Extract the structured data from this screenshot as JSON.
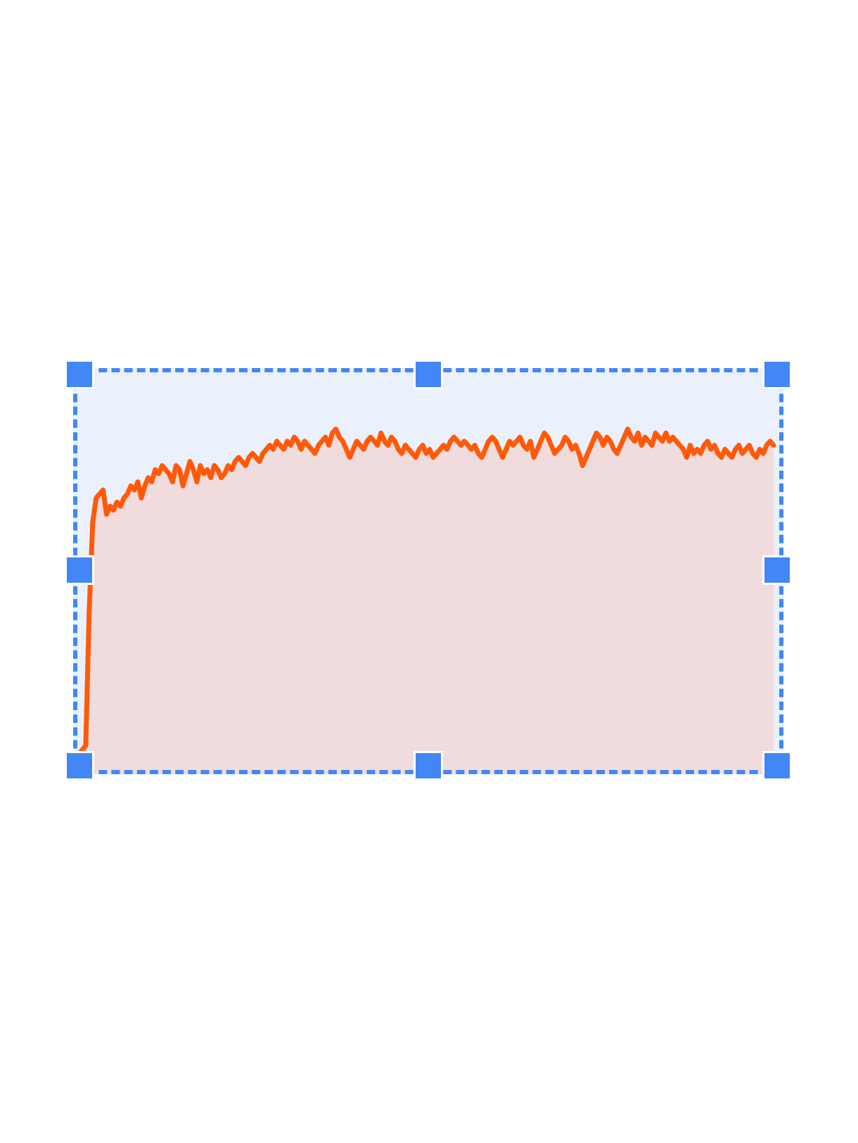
{
  "canvas": {
    "background": "#ffffff"
  },
  "selection": {
    "color": "#4287f5",
    "handles": [
      "top-left",
      "top-center",
      "top-right",
      "middle-left",
      "middle-right",
      "bottom-left",
      "bottom-center",
      "bottom-right"
    ]
  },
  "chart_data": {
    "type": "area",
    "title": "",
    "xlabel": "",
    "ylabel": "",
    "grid": false,
    "legend": "none",
    "colors": {
      "line": "#ff5a0a",
      "area": "#f0dcdc",
      "plot_background": "#eaf1fc"
    },
    "ylim": [
      0,
      100
    ],
    "x": [
      0,
      1,
      2,
      3,
      4,
      5,
      6,
      7,
      8,
      9,
      10,
      11,
      12,
      13,
      14,
      15,
      16,
      17,
      18,
      19,
      20,
      21,
      22,
      23,
      24,
      25,
      26,
      27,
      28,
      29,
      30,
      31,
      32,
      33,
      34,
      35,
      36,
      37,
      38,
      39,
      40,
      41,
      42,
      43,
      44,
      45,
      46,
      47,
      48,
      49,
      50,
      51,
      52,
      53,
      54,
      55,
      56,
      57,
      58,
      59,
      60,
      61,
      62,
      63,
      64,
      65,
      66,
      67,
      68,
      69,
      70,
      71,
      72,
      73,
      74,
      75,
      76,
      77,
      78,
      79,
      80,
      81,
      82,
      83,
      84,
      85,
      86,
      87,
      88,
      89,
      90,
      91,
      92,
      93,
      94,
      95,
      96,
      97,
      98,
      99,
      100,
      101,
      102,
      103,
      104,
      105,
      106,
      107,
      108,
      109,
      110,
      111,
      112,
      113,
      114,
      115,
      116,
      117,
      118,
      119,
      120,
      121,
      122,
      123,
      124,
      125,
      126,
      127,
      128,
      129,
      130,
      131,
      132,
      133,
      134,
      135,
      136,
      137,
      138,
      139,
      140,
      141,
      142,
      143,
      144,
      145,
      146,
      147,
      148,
      149,
      150,
      151,
      152,
      153,
      154,
      155,
      156,
      157,
      158,
      159,
      160,
      161,
      162,
      163,
      164,
      165,
      166,
      167,
      168,
      169,
      170,
      171,
      172,
      173,
      174,
      175,
      176,
      177,
      178,
      179,
      180,
      181,
      182,
      183,
      184,
      185,
      186,
      187,
      188,
      189,
      190,
      191,
      192,
      193,
      194,
      195,
      196,
      197,
      198,
      199,
      200
    ],
    "series": [
      {
        "values": [
          5,
          6,
          7,
          40,
          62,
          68,
          69,
          70,
          64,
          66,
          65,
          67,
          66,
          68,
          69,
          71,
          70,
          72,
          68,
          71,
          73,
          72,
          75,
          74,
          76,
          75,
          74,
          72,
          76,
          75,
          71,
          74,
          77,
          75,
          72,
          76,
          74,
          75,
          73,
          76,
          75,
          73,
          74,
          76,
          75,
          77,
          78,
          77,
          76,
          78,
          79,
          78,
          77,
          79,
          80,
          81,
          80,
          82,
          81,
          80,
          82,
          81,
          83,
          82,
          80,
          82,
          81,
          80,
          79,
          81,
          82,
          83,
          81,
          84,
          85,
          83,
          82,
          80,
          78,
          80,
          82,
          81,
          80,
          82,
          83,
          82,
          81,
          84,
          82,
          81,
          83,
          82,
          80,
          79,
          81,
          80,
          79,
          78,
          80,
          81,
          79,
          80,
          78,
          79,
          80,
          81,
          80,
          82,
          83,
          82,
          81,
          82,
          81,
          80,
          81,
          79,
          78,
          80,
          82,
          83,
          82,
          80,
          78,
          80,
          82,
          81,
          82,
          83,
          81,
          80,
          82,
          78,
          80,
          82,
          84,
          83,
          81,
          79,
          80,
          81,
          83,
          82,
          80,
          81,
          79,
          76,
          78,
          80,
          82,
          84,
          83,
          81,
          83,
          82,
          80,
          79,
          81,
          83,
          85,
          83,
          82,
          84,
          81,
          83,
          82,
          81,
          84,
          83,
          82,
          84,
          82,
          83,
          82,
          81,
          80,
          78,
          81,
          79,
          80,
          79,
          81,
          82,
          80,
          81,
          79,
          78,
          80,
          79,
          78,
          80,
          81,
          79,
          80,
          81,
          79,
          78,
          80,
          79,
          81,
          82,
          81
        ]
      }
    ]
  }
}
